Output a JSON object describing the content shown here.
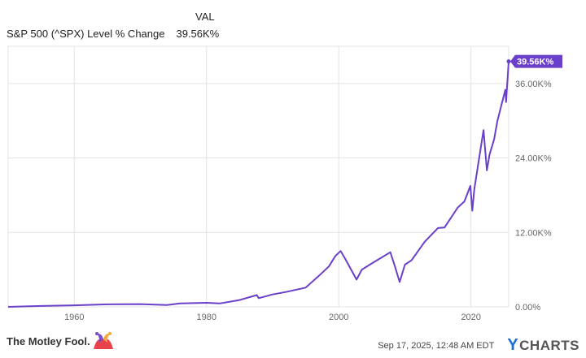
{
  "legend": {
    "header": "VAL",
    "series_label": "S&P 500 (^SPX) Level % Change",
    "series_value": "39.56K%"
  },
  "footer": {
    "brand": "The Motley Fool.",
    "timestamp": "Sep 17, 2025, 12:48 AM EDT",
    "powered_by": "YCHARTS",
    "powered_by_first": "Y",
    "powered_by_rest": "CHARTS"
  },
  "colors": {
    "series": "#6a3fc9",
    "grid": "#e3e3e3",
    "axis_text": "#666666",
    "badge_text": "#ffffff"
  },
  "chart_data": {
    "type": "line",
    "title": "",
    "xlabel": "",
    "ylabel": "",
    "x_ticks": [
      1960,
      1980,
      2000,
      2020
    ],
    "y_ticks": [
      0,
      12000,
      24000,
      36000
    ],
    "y_tick_labels": [
      "0.00%",
      "12.00K%",
      "24.00K%",
      "36.00K%"
    ],
    "xlim": [
      1950,
      2025.7
    ],
    "ylim": [
      0,
      42000
    ],
    "last_value_label": "39.56K%",
    "grid": true,
    "legend": "top-left",
    "series": [
      {
        "name": "S&P 500 (^SPX) Level % Change",
        "x": [
          1950,
          1955,
          1960,
          1965,
          1970,
          1974,
          1976,
          1980,
          1982,
          1985,
          1987.6,
          1987.9,
          1990,
          1992,
          1995,
          1997,
          1998.5,
          1999.5,
          2000.3,
          2001,
          2002.7,
          2003.5,
          2005,
          2007.8,
          2008.5,
          2009.2,
          2010,
          2011,
          2013,
          2015,
          2016,
          2018,
          2019,
          2019.9,
          2020.2,
          2020.5,
          2021.9,
          2022.4,
          2022.8,
          2023.5,
          2024,
          2025.2,
          2025.3,
          2025.7
        ],
        "y": [
          0,
          150,
          250,
          400,
          450,
          300,
          550,
          650,
          550,
          1100,
          1900,
          1400,
          2000,
          2400,
          3100,
          5000,
          6500,
          8200,
          9000,
          7700,
          4400,
          6000,
          7000,
          8800,
          6500,
          4000,
          6800,
          7500,
          10500,
          12700,
          12800,
          16000,
          17000,
          19500,
          15500,
          19000,
          28500,
          22000,
          24500,
          27000,
          30000,
          35000,
          33000,
          39560
        ]
      }
    ]
  }
}
